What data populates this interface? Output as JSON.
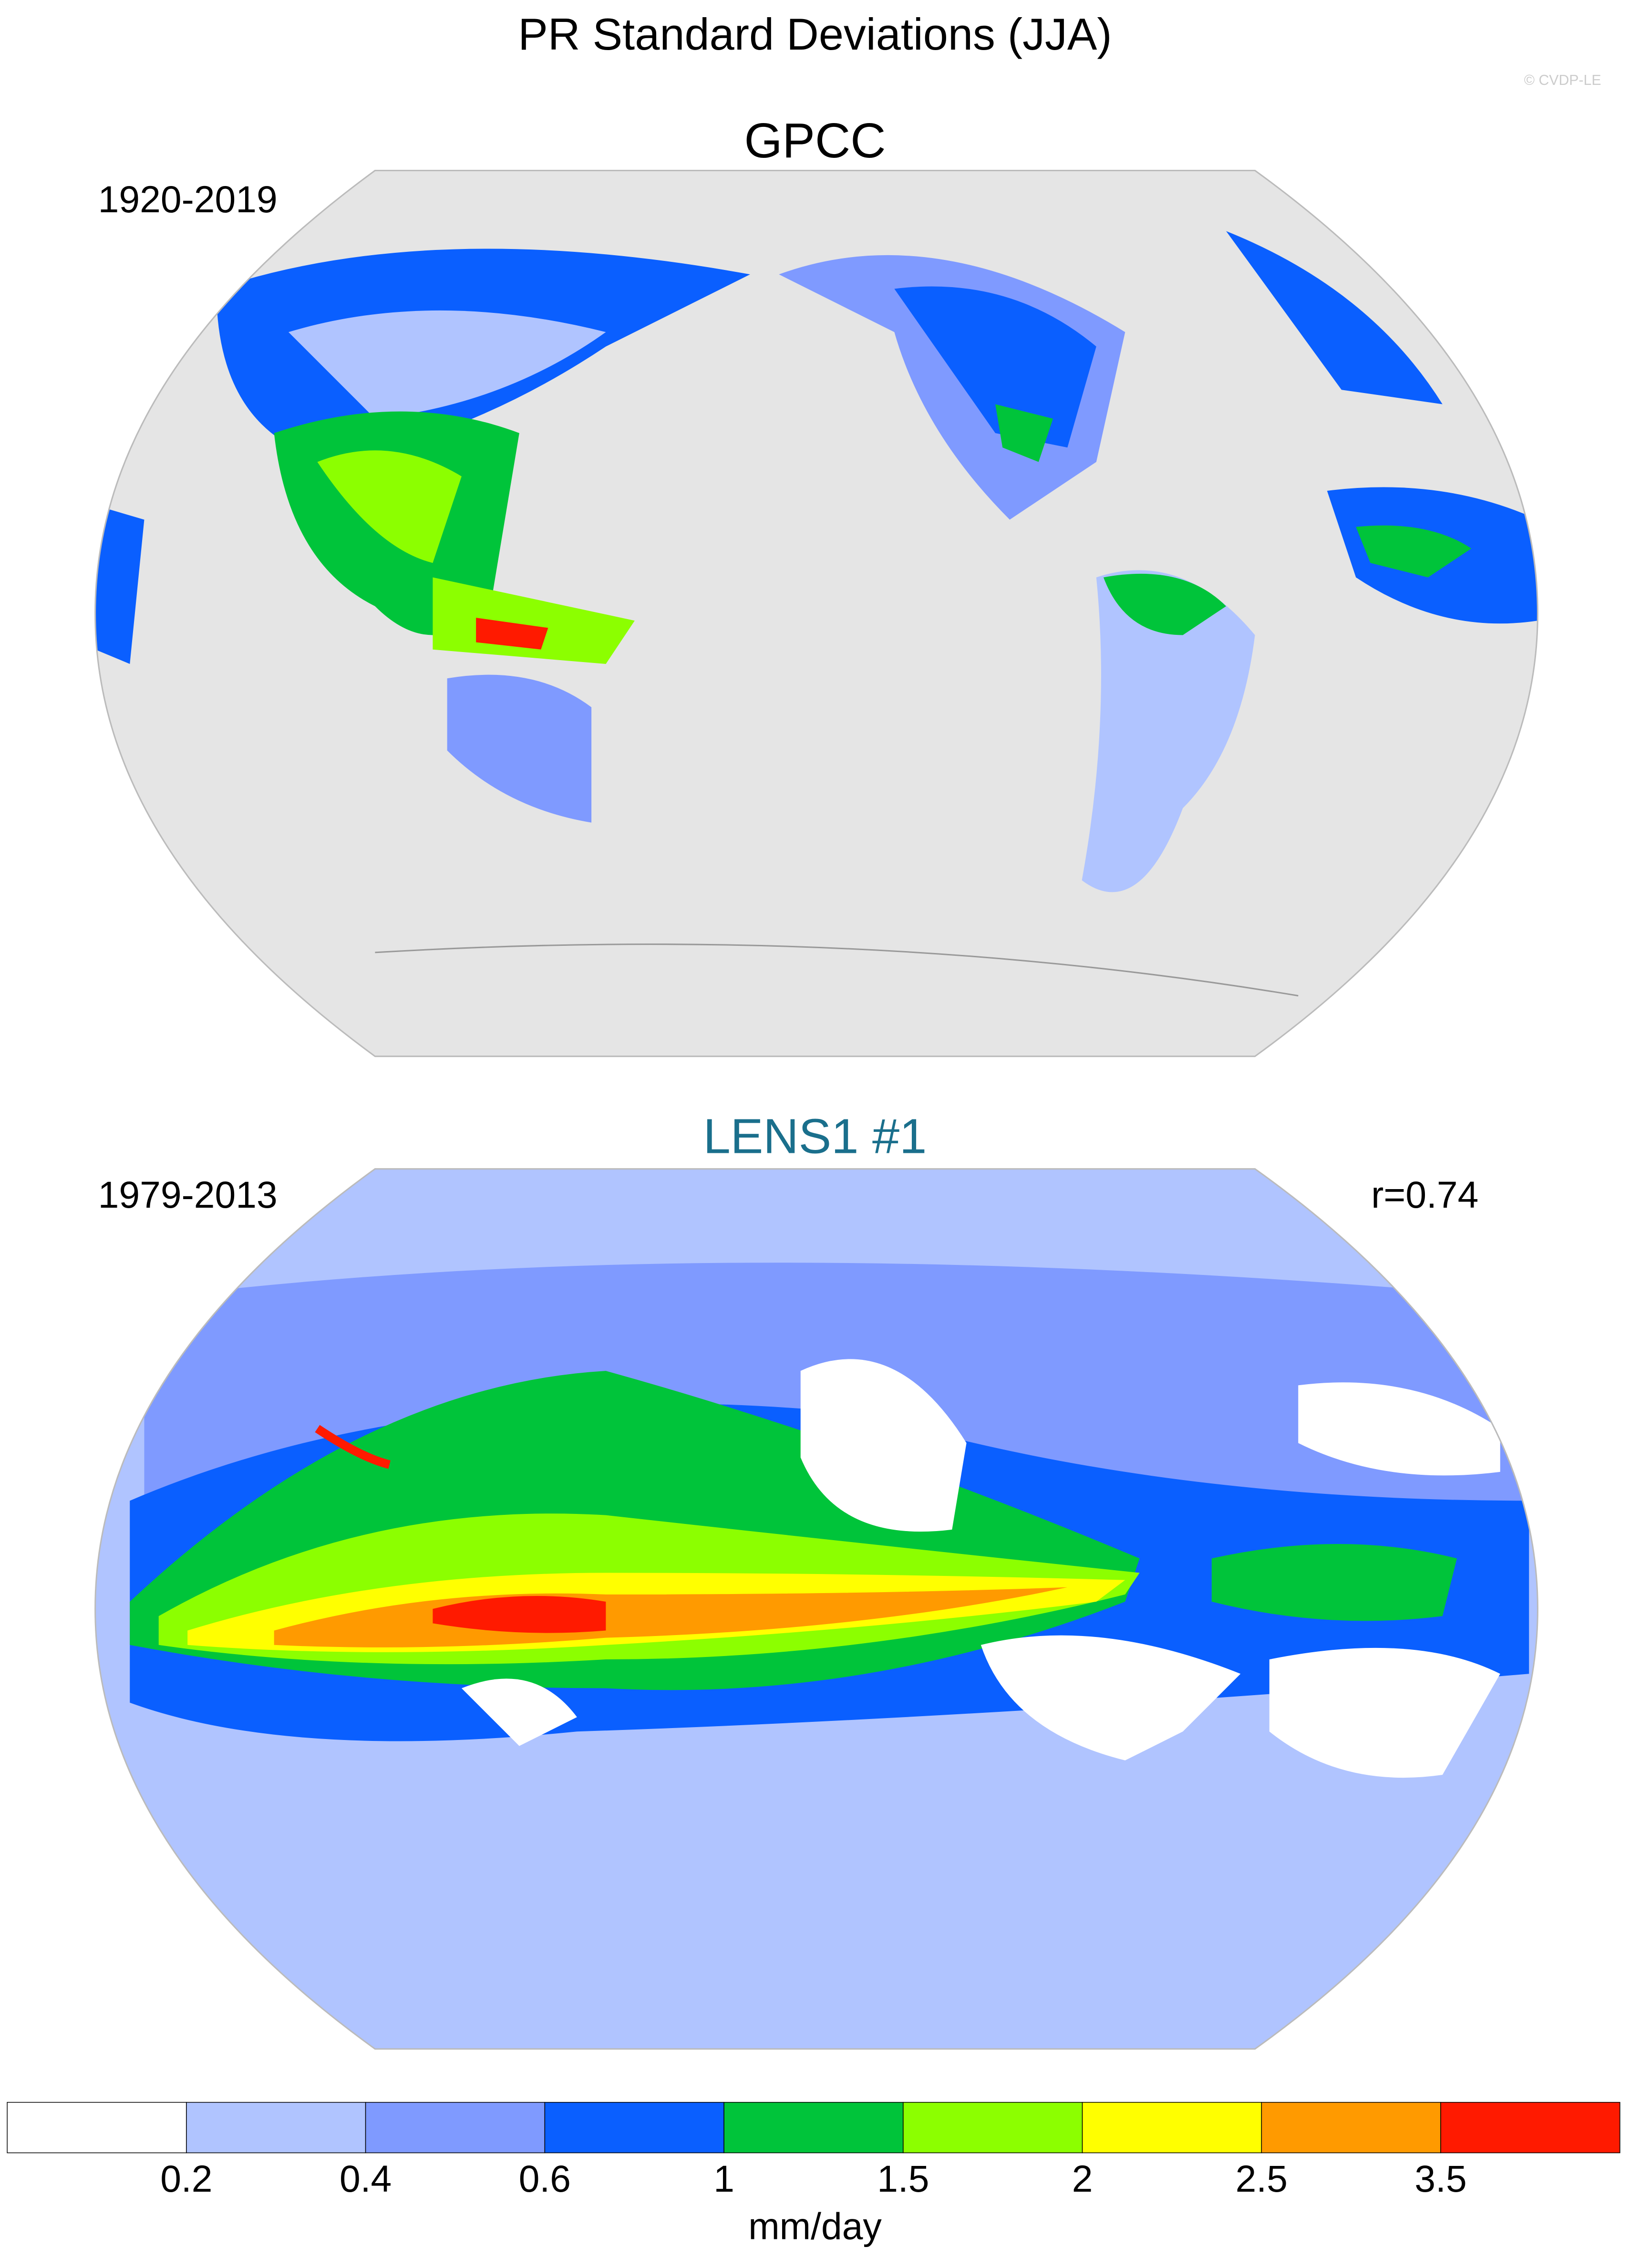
{
  "title": "PR Standard Deviations (JJA)",
  "watermark": "© CVDP-LE",
  "panels": [
    {
      "title": "GPCC",
      "title_color": "#000000",
      "period": "1920-2019"
    },
    {
      "title": "LENS1 #1",
      "title_color": "#1a6f8c",
      "period": "1979-2013",
      "correlation": "r=0.74"
    }
  ],
  "colorbar": {
    "levels": [
      0.2,
      0.4,
      0.6,
      1,
      1.5,
      2,
      2.5,
      3.5
    ],
    "colors": [
      "#ffffff",
      "#b0c4ff",
      "#7f9aff",
      "#0a5fff",
      "#00c43a",
      "#8cff00",
      "#ffff00",
      "#ff9a00",
      "#ff1a00"
    ],
    "units": "mm/day"
  }
}
